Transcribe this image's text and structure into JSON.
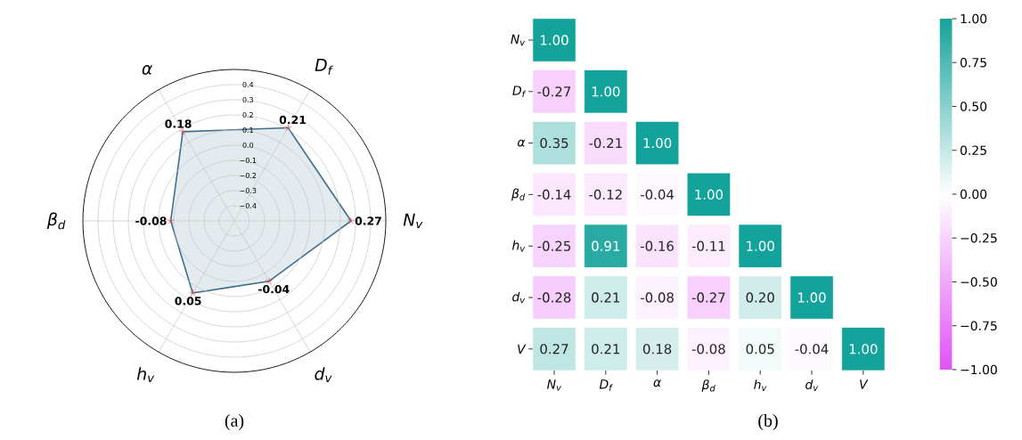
{
  "chart_data": [
    {
      "type": "radar",
      "categories": [
        "D$_{f}$",
        "N$_{v}$",
        "d$_{v}$",
        "h$_{v}$",
        "β$_{d}$",
        "α"
      ],
      "series": [
        {
          "color": "#3d6f8e",
          "values": [
            0.21,
            0.27,
            -0.04,
            0.05,
            -0.08,
            0.18
          ]
        }
      ],
      "ylim": [
        -0.5,
        0.5
      ],
      "yticks": [
        {
          "value": -0.4,
          "label": "−0.4"
        },
        {
          "value": -0.3,
          "label": "−0.3"
        },
        {
          "value": -0.2,
          "label": "−0.2"
        },
        {
          "value": -0.1,
          "label": "−0.1"
        },
        {
          "value": 0,
          "label": "0.0"
        },
        0.1,
        0.2,
        0.3,
        0.4
      ],
      "marker": "star",
      "data_labels": true,
      "grid": true,
      "annotations": [
        "(a)"
      ]
    },
    {
      "type": "heatmap",
      "categories": [
        "N$_{v}$",
        "D$_{f}$",
        "α",
        "β$_{d}$",
        "h$_{v}$",
        "d$_{v}$",
        "V"
      ],
      "y_categories": [
        "N$_{v}$",
        "D$_{f}$",
        "α",
        "β$_{d}$",
        "h$_{v}$",
        "d$_{v}$",
        "V"
      ],
      "cells": [
        [
          1.0,
          null,
          null,
          null,
          null,
          null,
          null
        ],
        [
          -0.27,
          1.0,
          null,
          null,
          null,
          null,
          null
        ],
        [
          0.35,
          -0.21,
          1.0,
          null,
          null,
          null,
          null
        ],
        [
          -0.14,
          -0.12,
          -0.04,
          1.0,
          null,
          null,
          null
        ],
        [
          -0.25,
          0.91,
          -0.16,
          -0.11,
          1.0,
          null,
          null
        ],
        [
          -0.28,
          0.21,
          -0.08,
          -0.27,
          0.2,
          1.0,
          null
        ],
        [
          0.27,
          0.21,
          0.18,
          -0.08,
          0.05,
          -0.04,
          1.0
        ]
      ],
      "cell_labels": [
        [
          "1.00",
          null,
          null,
          null,
          null,
          null,
          null
        ],
        [
          "-0.27",
          "1.00",
          null,
          null,
          null,
          null,
          null
        ],
        [
          "0.35",
          "-0.21",
          "1.00",
          null,
          null,
          null,
          null
        ],
        [
          "-0.14",
          "-0.12",
          "-0.04",
          "1.00",
          null,
          null,
          null
        ],
        [
          "-0.25",
          "0.91",
          "-0.16",
          "-0.11",
          "1.00",
          null,
          null
        ],
        [
          "-0.28",
          "0.21",
          "-0.08",
          "-0.27",
          "0.20",
          "1.00",
          null
        ],
        [
          "0.27",
          "0.21",
          "0.18",
          "-0.08",
          "0.05",
          "-0.04",
          "1.00"
        ]
      ],
      "clim": [
        -1,
        1
      ],
      "cticks": [
        {
          "value": -1,
          "label": "−1.00"
        },
        {
          "value": -0.75,
          "label": "−0.75"
        },
        {
          "value": -0.5,
          "label": "−0.50"
        },
        {
          "value": -0.25,
          "label": "−0.25"
        },
        {
          "value": 0,
          "label": "0.00"
        },
        {
          "value": 0.25,
          "label": "0.25"
        },
        {
          "value": 0.5,
          "label": "0.50"
        },
        {
          "value": 0.75,
          "label": "0.75"
        },
        {
          "value": 1,
          "label": "1.00"
        }
      ],
      "annotations": [
        "(b)"
      ]
    }
  ]
}
